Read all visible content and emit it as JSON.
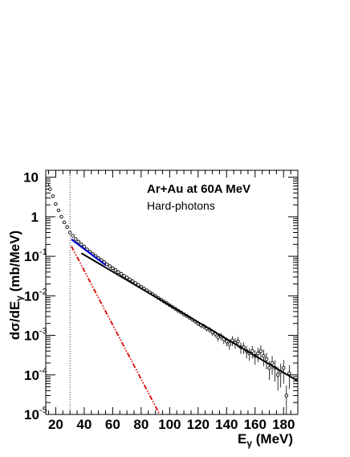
{
  "chart_data": {
    "type": "scatter",
    "title": "",
    "xlabel": "E",
    "xlabel_subscript": "γ",
    "xlabel_unit": " (MeV)",
    "ylabel": "dσ/dE",
    "ylabel_subscript": "γ",
    "ylabel_unit": " (mb/MeV)",
    "xscale": "linear",
    "yscale": "log",
    "xlim": [
      13,
      190
    ],
    "ylim": [
      1e-05,
      15
    ],
    "grid": false,
    "legend": "none",
    "annotations": [
      "Ar+Au at 60A MeV",
      "Hard-photons"
    ],
    "x_ticks": [
      20,
      40,
      60,
      80,
      100,
      120,
      140,
      160,
      180
    ],
    "y_ticks": [
      {
        "value": 10,
        "mantissa": "10",
        "exp": ""
      },
      {
        "value": 1,
        "mantissa": "1",
        "exp": ""
      },
      {
        "value": 0.1,
        "mantissa": "10",
        "exp": "-1"
      },
      {
        "value": 0.01,
        "mantissa": "10",
        "exp": "-2"
      },
      {
        "value": 0.001,
        "mantissa": "10",
        "exp": "-3"
      },
      {
        "value": 0.0001,
        "mantissa": "10",
        "exp": "-4"
      },
      {
        "value": 1e-05,
        "mantissa": "10",
        "exp": "-5"
      }
    ],
    "threshold_x": 30,
    "series": [
      {
        "kind": "points",
        "color": "#000000",
        "x": [
          14,
          16,
          18,
          20,
          22,
          24,
          26,
          28,
          30,
          32,
          34,
          36,
          38,
          40,
          42,
          44,
          46,
          48,
          50,
          52,
          54,
          56,
          58,
          60,
          62,
          64,
          66,
          68,
          70,
          72,
          74,
          76,
          78,
          80,
          82,
          84,
          86,
          88,
          90,
          92,
          94,
          96,
          98,
          100,
          102,
          104,
          106,
          108,
          110,
          112,
          114,
          116,
          118,
          120,
          122,
          124,
          126,
          128,
          130,
          132,
          134,
          136,
          138,
          140,
          142,
          144,
          146,
          148,
          150,
          152,
          154,
          156,
          158,
          160,
          162,
          164,
          166,
          168,
          170,
          172,
          174,
          176,
          178,
          180,
          182,
          184
        ],
        "y": [
          6.5,
          5.0,
          3.3,
          2.1,
          1.45,
          1.0,
          0.72,
          0.55,
          0.4,
          0.33,
          0.275,
          0.235,
          0.2,
          0.175,
          0.15,
          0.13,
          0.115,
          0.102,
          0.09,
          0.08,
          0.071,
          0.063,
          0.056,
          0.05,
          0.045,
          0.04,
          0.036,
          0.032,
          0.029,
          0.026,
          0.0235,
          0.021,
          0.019,
          0.017,
          0.0152,
          0.0137,
          0.0123,
          0.011,
          0.0099,
          0.0089,
          0.008,
          0.0072,
          0.0065,
          0.0058,
          0.0052,
          0.0047,
          0.0042,
          0.0038,
          0.0034,
          0.0031,
          0.0028,
          0.0025,
          0.00225,
          0.002,
          0.0018,
          0.0017,
          0.0015,
          0.0014,
          0.0012,
          0.0011,
          0.0009,
          0.00095,
          0.0008,
          0.0007,
          0.0006,
          0.00075,
          0.00065,
          0.0007,
          0.0005,
          0.0005,
          0.0004,
          0.00035,
          0.0004,
          0.0003,
          0.00035,
          0.0004,
          0.0003,
          0.00025,
          0.00015,
          0.0002,
          0.00015,
          0.0001,
          0.00012,
          0.00015,
          3e-05,
          0.00011
        ],
        "yerr_rel": [
          0.03,
          0.03,
          0.03,
          0.03,
          0.03,
          0.03,
          0.03,
          0.03,
          0.03,
          0.03,
          0.03,
          0.03,
          0.03,
          0.03,
          0.03,
          0.03,
          0.03,
          0.03,
          0.03,
          0.03,
          0.03,
          0.03,
          0.03,
          0.04,
          0.04,
          0.04,
          0.04,
          0.04,
          0.04,
          0.04,
          0.04,
          0.04,
          0.05,
          0.05,
          0.05,
          0.05,
          0.05,
          0.06,
          0.06,
          0.06,
          0.06,
          0.07,
          0.07,
          0.07,
          0.08,
          0.08,
          0.09,
          0.09,
          0.1,
          0.1,
          0.11,
          0.12,
          0.13,
          0.14,
          0.15,
          0.16,
          0.17,
          0.18,
          0.2,
          0.2,
          0.22,
          0.22,
          0.25,
          0.25,
          0.28,
          0.28,
          0.3,
          0.3,
          0.32,
          0.32,
          0.35,
          0.35,
          0.35,
          0.4,
          0.4,
          0.4,
          0.45,
          0.45,
          0.5,
          0.5,
          0.55,
          0.6,
          0.6,
          0.6,
          0.8,
          0.6
        ]
      },
      {
        "kind": "line",
        "color": "#000000",
        "width": 2,
        "dash": "",
        "x": [
          38,
          190
        ],
        "y": [
          0.12,
          7e-05
        ]
      },
      {
        "kind": "line",
        "color": "#0000cc",
        "width": 2.2,
        "dash": "",
        "x": [
          31,
          55
        ],
        "y": [
          0.27,
          0.06
        ]
      },
      {
        "kind": "line",
        "color": "#dd0000",
        "width": 1.8,
        "dash": "6,2,1.5,2,1.5,2",
        "x": [
          31,
          93
        ],
        "y": [
          0.18,
          1e-05
        ]
      }
    ]
  }
}
